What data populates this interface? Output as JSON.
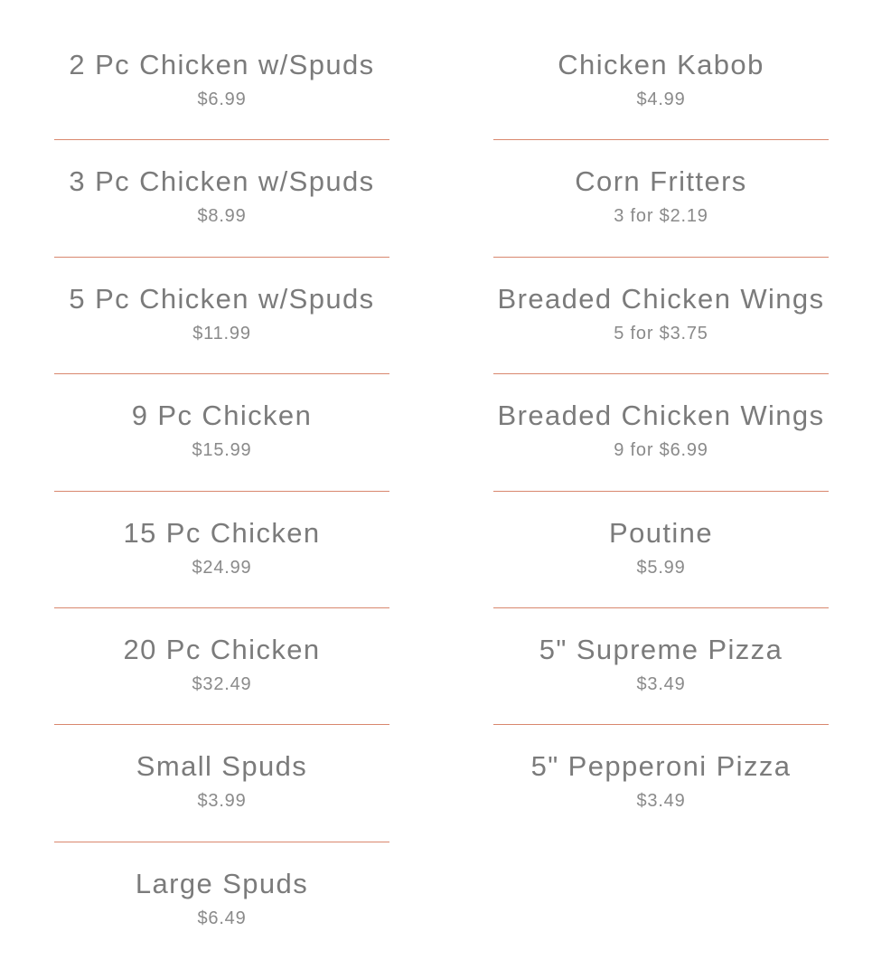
{
  "menu": {
    "left": [
      {
        "name": "2 Pc Chicken w/Spuds",
        "price": "$6.99"
      },
      {
        "name": "3 Pc Chicken w/Spuds",
        "price": "$8.99"
      },
      {
        "name": "5 Pc Chicken w/Spuds",
        "price": "$11.99"
      },
      {
        "name": "9 Pc Chicken",
        "price": "$15.99"
      },
      {
        "name": "15 Pc Chicken",
        "price": "$24.99"
      },
      {
        "name": "20 Pc Chicken",
        "price": "$32.49"
      },
      {
        "name": "Small Spuds",
        "price": "$3.99"
      },
      {
        "name": "Large Spuds",
        "price": "$6.49"
      }
    ],
    "right": [
      {
        "name": "Chicken Kabob",
        "price": "$4.99"
      },
      {
        "name": "Corn Fritters",
        "price": "3 for $2.19"
      },
      {
        "name": "Breaded Chicken Wings",
        "price": "5 for $3.75"
      },
      {
        "name": "Breaded Chicken Wings",
        "price": "9 for $6.99"
      },
      {
        "name": "Poutine",
        "price": "$5.99"
      },
      {
        "name": "5\" Supreme Pizza",
        "price": "$3.49"
      },
      {
        "name": "5\" Pepperoni Pizza",
        "price": "$3.49"
      }
    ]
  },
  "colors": {
    "divider": "#d9876e",
    "text": "#7b7b7b"
  }
}
